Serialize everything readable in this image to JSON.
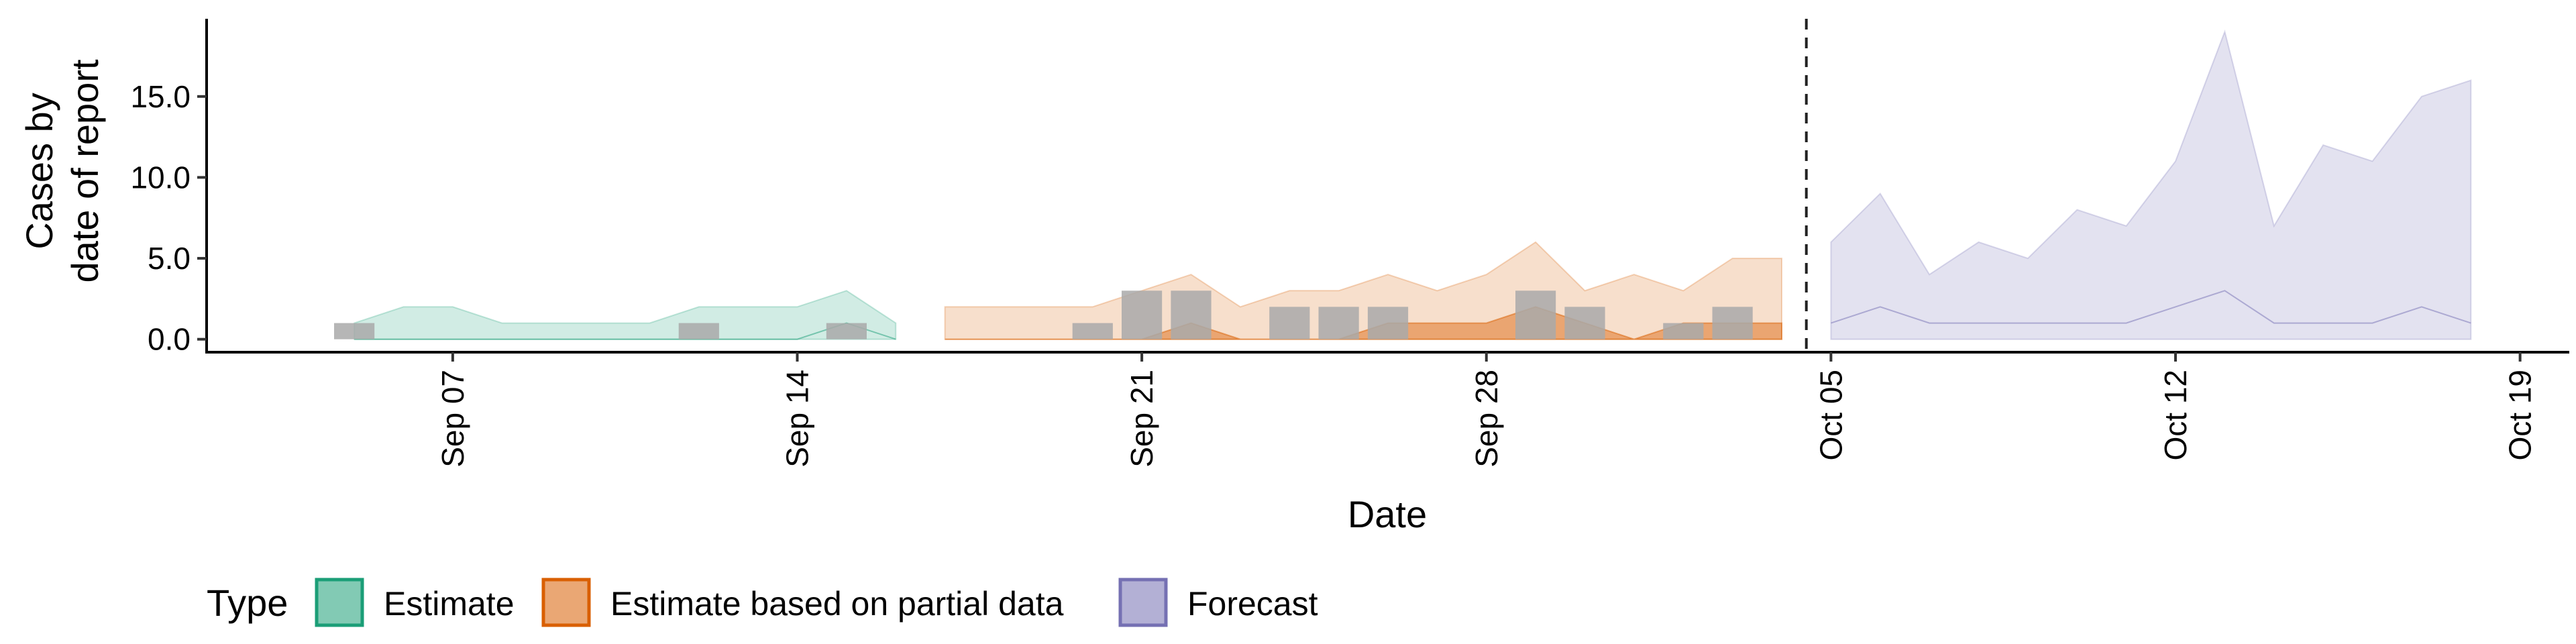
{
  "chart_data": {
    "type": "area",
    "title": "",
    "xlabel": "Date",
    "ylabel": [
      "Cases by",
      "date of report"
    ],
    "x_ticks": [
      "Sep 07",
      "Sep 14",
      "Sep 21",
      "Sep 28",
      "Oct 05",
      "Oct 12",
      "Oct 19"
    ],
    "x_tick_dates": [
      "2020-09-07",
      "2020-09-14",
      "2020-09-21",
      "2020-09-28",
      "2020-10-05",
      "2020-10-12",
      "2020-10-19"
    ],
    "xlim": [
      "2020-09-02",
      "2020-10-20"
    ],
    "y_ticks": [
      "0.0",
      "5.0",
      "10.0",
      "15.0"
    ],
    "y_tick_values": [
      0,
      5,
      10,
      15
    ],
    "ylim": [
      -0.8,
      19.8
    ],
    "grid": false,
    "forecast_date": "2020-10-04",
    "legend": {
      "title": "Type",
      "position": "bottom",
      "items": [
        {
          "label": "Estimate",
          "fill": "#1b9e77",
          "stroke": "#1b9e77"
        },
        {
          "label": "Estimate based on partial data",
          "fill": "#d95f02",
          "stroke": "#d95f02"
        },
        {
          "label": "Forecast",
          "fill": "#7570b3",
          "stroke": "#7570b3"
        }
      ]
    },
    "series": [
      {
        "name": "Estimate",
        "color": "#1b9e77",
        "x": [
          "2020-09-05",
          "2020-09-06",
          "2020-09-07",
          "2020-09-08",
          "2020-09-09",
          "2020-09-10",
          "2020-09-11",
          "2020-09-12",
          "2020-09-13",
          "2020-09-14",
          "2020-09-15",
          "2020-09-16"
        ],
        "outer_upper": [
          1,
          2,
          2,
          1,
          1,
          1,
          1,
          2,
          2,
          2,
          3,
          1
        ],
        "inner_lower": [
          0,
          0,
          0,
          0,
          0,
          0,
          0,
          0,
          0,
          0,
          1,
          0
        ],
        "inner_upper": [
          0,
          0,
          0,
          0,
          0,
          0,
          0,
          0,
          0,
          0,
          1,
          0
        ]
      },
      {
        "name": "Estimate based on partial data",
        "color": "#d95f02",
        "x": [
          "2020-09-17",
          "2020-09-18",
          "2020-09-19",
          "2020-09-20",
          "2020-09-21",
          "2020-09-22",
          "2020-09-23",
          "2020-09-24",
          "2020-09-25",
          "2020-09-26",
          "2020-09-27",
          "2020-09-28",
          "2020-09-29",
          "2020-09-30",
          "2020-10-01",
          "2020-10-02",
          "2020-10-03",
          "2020-10-04"
        ],
        "outer_upper": [
          2,
          2,
          2,
          2,
          3,
          4,
          2,
          3,
          3,
          4,
          3,
          4,
          6,
          3,
          4,
          3,
          5,
          5
        ],
        "inner_upper": [
          0,
          0,
          0,
          0,
          0,
          1,
          0,
          0,
          0,
          1,
          1,
          1,
          2,
          1,
          0,
          1,
          1,
          1
        ]
      },
      {
        "name": "Forecast",
        "color": "#7570b3",
        "x": [
          "2020-10-05",
          "2020-10-06",
          "2020-10-07",
          "2020-10-08",
          "2020-10-09",
          "2020-10-10",
          "2020-10-11",
          "2020-10-12",
          "2020-10-13",
          "2020-10-14",
          "2020-10-15",
          "2020-10-16",
          "2020-10-17",
          "2020-10-18"
        ],
        "outer_upper": [
          6,
          9,
          4,
          6,
          5,
          8,
          7,
          11,
          19,
          7,
          12,
          11,
          15,
          16
        ],
        "inner_lower": [
          1,
          2,
          1,
          1,
          1,
          1,
          1,
          2,
          3,
          1,
          1,
          1,
          2,
          1
        ],
        "inner_upper": [
          1,
          2,
          1,
          1,
          1,
          1,
          1,
          2,
          3,
          1,
          1,
          1,
          2,
          1
        ]
      }
    ],
    "reported_cases": {
      "x": [
        "2020-09-05",
        "2020-09-12",
        "2020-09-15",
        "2020-09-20",
        "2020-09-21",
        "2020-09-22",
        "2020-09-24",
        "2020-09-25",
        "2020-09-26",
        "2020-09-29",
        "2020-09-30",
        "2020-10-02",
        "2020-10-03"
      ],
      "values": [
        1,
        1,
        1,
        1,
        3,
        3,
        2,
        2,
        2,
        3,
        2,
        1,
        2
      ],
      "color": "#a9a9a9"
    }
  }
}
